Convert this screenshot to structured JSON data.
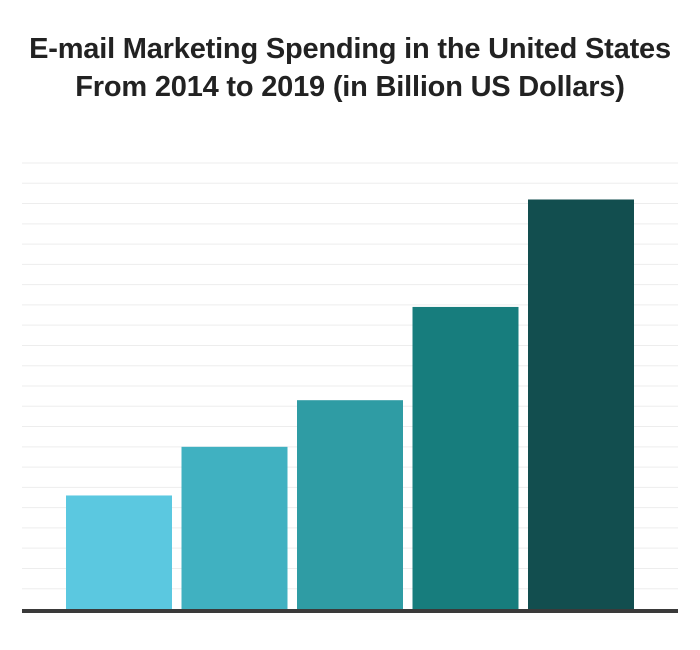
{
  "title_lines": [
    "E-mail Marketing Spending in the United States",
    "From 2014 to 2019 (in Billion US Dollars)"
  ],
  "chart_data": {
    "type": "bar",
    "title": "E-mail Marketing Spending in the United States From 2014 to 2019 (in Billion US Dollars)",
    "xlabel": "",
    "ylabel": "",
    "ylim": [
      0,
      22
    ],
    "grid": true,
    "bars": [
      {
        "value": 5.6,
        "color": "#5bc8e0"
      },
      {
        "value": 8.0,
        "color": "#40b1c1"
      },
      {
        "value": 10.3,
        "color": "#2f9ca4"
      },
      {
        "value": 14.9,
        "color": "#177d7d"
      },
      {
        "value": 20.2,
        "color": "#124e4f"
      }
    ],
    "baseline_color": "#3a3a3a",
    "grid_color": "#ededed"
  }
}
